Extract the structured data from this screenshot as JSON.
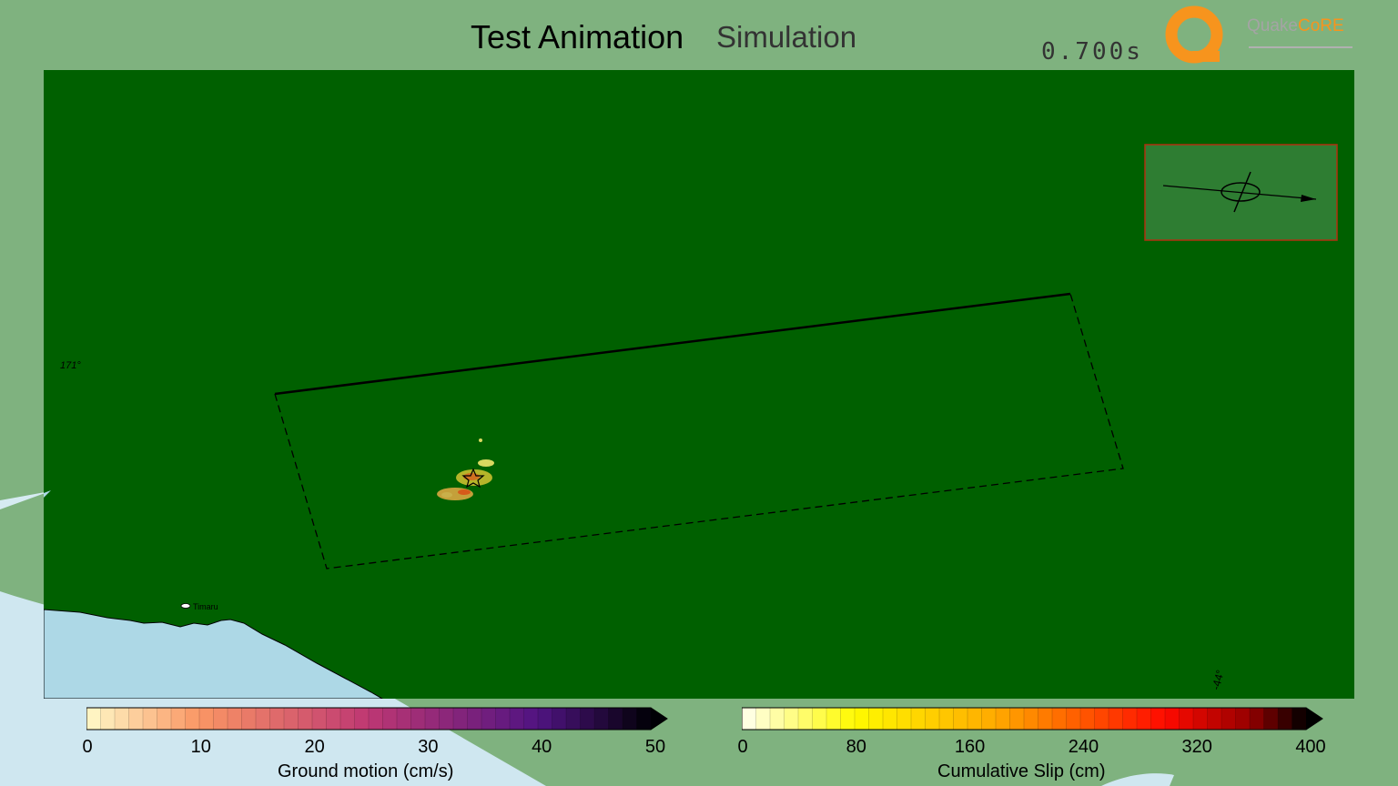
{
  "header": {
    "title": "Test Animation",
    "subtitle": "Simulation",
    "time": "0.700s"
  },
  "logo": {
    "text_a": "Quake",
    "text_b": "CoRE",
    "brand_color": "#f7941d"
  },
  "map": {
    "land_color": "#006000",
    "sea_color": "#add8e6",
    "town": "Timaru",
    "lon_tick": "171°",
    "corner_tick": "-44°"
  },
  "colorbars": {
    "ground_motion": {
      "label": "Ground motion (cm/s)",
      "ticks": [
        "0",
        "10",
        "20",
        "30",
        "40",
        "50"
      ],
      "range": [
        0,
        50
      ]
    },
    "slip": {
      "label": "Cumulative Slip (cm)",
      "ticks": [
        "0",
        "80",
        "160",
        "240",
        "320",
        "400"
      ],
      "range": [
        0,
        400
      ]
    }
  }
}
